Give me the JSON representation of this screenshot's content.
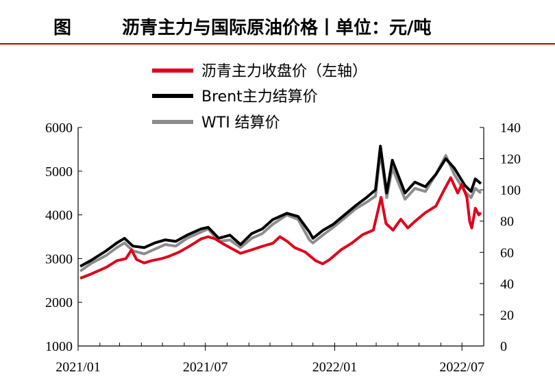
{
  "header": {
    "prefix": "图",
    "title": "沥青主力与国际原油价格丨单位：元/吨",
    "rule_color": "#c00000"
  },
  "chart_data": {
    "type": "line",
    "x_tick_labels": [
      "2021/01",
      "2021/07",
      "2022/01",
      "2022/07"
    ],
    "x_range": [
      "2021/01",
      "2022/07"
    ],
    "y_left": {
      "ticks": [
        1000,
        2000,
        3000,
        4000,
        5000,
        6000
      ],
      "ylim": [
        1000,
        6000
      ]
    },
    "y_right": {
      "ticks": [
        0,
        20,
        40,
        60,
        80,
        100,
        120,
        140
      ],
      "ylim": [
        0,
        140
      ]
    },
    "legend_position": "top-center",
    "grid": false,
    "series": [
      {
        "name": "沥青主力收盘价（左轴）",
        "axis": "left",
        "color": "#e0001b",
        "points": [
          [
            "2021-01-04",
            2550
          ],
          [
            "2021-01-20",
            2650
          ],
          [
            "2021-02-10",
            2800
          ],
          [
            "2021-02-25",
            2950
          ],
          [
            "2021-03-10",
            3000
          ],
          [
            "2021-03-18",
            3200
          ],
          [
            "2021-03-25",
            2980
          ],
          [
            "2021-04-05",
            2900
          ],
          [
            "2021-04-15",
            2950
          ],
          [
            "2021-04-30",
            3000
          ],
          [
            "2021-05-10",
            3050
          ],
          [
            "2021-05-25",
            3150
          ],
          [
            "2021-06-10",
            3300
          ],
          [
            "2021-06-25",
            3450
          ],
          [
            "2021-07-05",
            3500
          ],
          [
            "2021-07-15",
            3450
          ],
          [
            "2021-07-25",
            3350
          ],
          [
            "2021-08-05",
            3250
          ],
          [
            "2021-08-20",
            3120
          ],
          [
            "2021-09-05",
            3200
          ],
          [
            "2021-09-20",
            3280
          ],
          [
            "2021-10-05",
            3350
          ],
          [
            "2021-10-15",
            3500
          ],
          [
            "2021-10-25",
            3400
          ],
          [
            "2021-11-05",
            3250
          ],
          [
            "2021-11-20",
            3150
          ],
          [
            "2021-12-05",
            2950
          ],
          [
            "2021-12-15",
            2880
          ],
          [
            "2021-12-25",
            2980
          ],
          [
            "2022-01-10",
            3200
          ],
          [
            "2022-01-25",
            3350
          ],
          [
            "2022-02-10",
            3550
          ],
          [
            "2022-02-25",
            3650
          ],
          [
            "2022-03-08",
            4400
          ],
          [
            "2022-03-15",
            3800
          ],
          [
            "2022-03-25",
            3650
          ],
          [
            "2022-04-05",
            3900
          ],
          [
            "2022-04-15",
            3700
          ],
          [
            "2022-04-25",
            3850
          ],
          [
            "2022-05-10",
            4050
          ],
          [
            "2022-05-25",
            4200
          ],
          [
            "2022-06-05",
            4550
          ],
          [
            "2022-06-15",
            4850
          ],
          [
            "2022-06-25",
            4500
          ],
          [
            "2022-07-01",
            4700
          ],
          [
            "2022-07-08",
            4400
          ],
          [
            "2022-07-12",
            3850
          ],
          [
            "2022-07-15",
            3700
          ],
          [
            "2022-07-20",
            4150
          ],
          [
            "2022-07-25",
            4000
          ],
          [
            "2022-07-28",
            4050
          ]
        ]
      },
      {
        "name": "Brent主力结算价",
        "axis": "right",
        "color": "#000000",
        "points": [
          [
            "2021-01-04",
            51
          ],
          [
            "2021-01-20",
            55
          ],
          [
            "2021-02-10",
            61
          ],
          [
            "2021-02-25",
            66
          ],
          [
            "2021-03-08",
            69
          ],
          [
            "2021-03-20",
            64
          ],
          [
            "2021-04-05",
            63
          ],
          [
            "2021-04-20",
            66
          ],
          [
            "2021-05-05",
            68
          ],
          [
            "2021-05-20",
            67
          ],
          [
            "2021-06-05",
            71
          ],
          [
            "2021-06-25",
            75
          ],
          [
            "2021-07-05",
            76
          ],
          [
            "2021-07-20",
            69
          ],
          [
            "2021-08-05",
            71
          ],
          [
            "2021-08-20",
            65
          ],
          [
            "2021-09-05",
            72
          ],
          [
            "2021-09-20",
            75
          ],
          [
            "2021-10-05",
            81
          ],
          [
            "2021-10-25",
            85
          ],
          [
            "2021-11-10",
            83
          ],
          [
            "2021-11-26",
            73
          ],
          [
            "2021-12-01",
            69
          ],
          [
            "2021-12-15",
            74
          ],
          [
            "2021-12-30",
            78
          ],
          [
            "2022-01-15",
            84
          ],
          [
            "2022-01-31",
            90
          ],
          [
            "2022-02-15",
            95
          ],
          [
            "2022-02-28",
            100
          ],
          [
            "2022-03-07",
            128
          ],
          [
            "2022-03-16",
            98
          ],
          [
            "2022-03-24",
            119
          ],
          [
            "2022-04-11",
            98
          ],
          [
            "2022-04-25",
            105
          ],
          [
            "2022-05-10",
            102
          ],
          [
            "2022-05-25",
            110
          ],
          [
            "2022-06-08",
            120
          ],
          [
            "2022-06-20",
            114
          ],
          [
            "2022-07-05",
            103
          ],
          [
            "2022-07-14",
            99
          ],
          [
            "2022-07-20",
            107
          ],
          [
            "2022-07-28",
            104
          ]
        ]
      },
      {
        "name": "WTI 结算价",
        "axis": "right",
        "color": "#8c8c8c",
        "points": [
          [
            "2021-01-04",
            48
          ],
          [
            "2021-01-20",
            53
          ],
          [
            "2021-02-10",
            58
          ],
          [
            "2021-02-25",
            63
          ],
          [
            "2021-03-08",
            66
          ],
          [
            "2021-03-20",
            61
          ],
          [
            "2021-04-05",
            59
          ],
          [
            "2021-04-20",
            62
          ],
          [
            "2021-05-05",
            65
          ],
          [
            "2021-05-20",
            64
          ],
          [
            "2021-06-05",
            69
          ],
          [
            "2021-06-25",
            73
          ],
          [
            "2021-07-05",
            75
          ],
          [
            "2021-07-20",
            67
          ],
          [
            "2021-08-05",
            68
          ],
          [
            "2021-08-20",
            63
          ],
          [
            "2021-09-05",
            69
          ],
          [
            "2021-09-20",
            72
          ],
          [
            "2021-10-05",
            78
          ],
          [
            "2021-10-25",
            84
          ],
          [
            "2021-11-10",
            81
          ],
          [
            "2021-11-26",
            68
          ],
          [
            "2021-12-01",
            66
          ],
          [
            "2021-12-15",
            71
          ],
          [
            "2021-12-30",
            76
          ],
          [
            "2022-01-15",
            82
          ],
          [
            "2022-01-31",
            88
          ],
          [
            "2022-02-15",
            92
          ],
          [
            "2022-02-28",
            96
          ],
          [
            "2022-03-07",
            124
          ],
          [
            "2022-03-16",
            95
          ],
          [
            "2022-03-24",
            114
          ],
          [
            "2022-04-11",
            94
          ],
          [
            "2022-04-25",
            101
          ],
          [
            "2022-05-10",
            99
          ],
          [
            "2022-05-25",
            110
          ],
          [
            "2022-06-08",
            122
          ],
          [
            "2022-06-20",
            110
          ],
          [
            "2022-07-05",
            99
          ],
          [
            "2022-07-14",
            95
          ],
          [
            "2022-07-20",
            101
          ],
          [
            "2022-07-28",
            98
          ]
        ]
      }
    ]
  }
}
